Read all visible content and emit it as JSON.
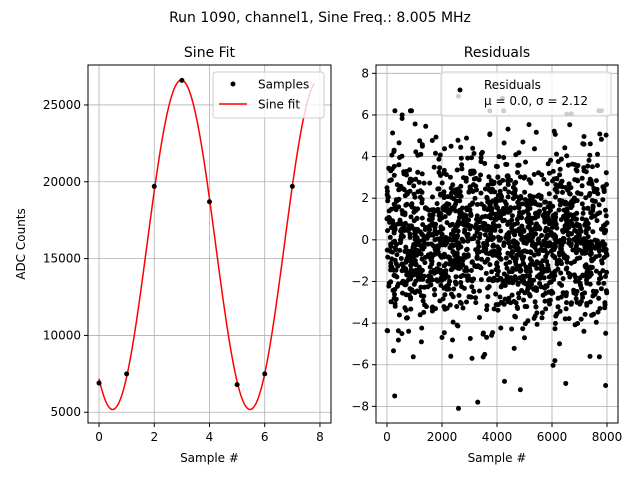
{
  "figure": {
    "suptitle": "Run 1090, channel1, Sine Freq.: 8.005 MHz",
    "colors": {
      "samples": "#000000",
      "fit": "#ff0000",
      "grid": "#b0b0b0"
    }
  },
  "chart_data": [
    {
      "type": "scatter",
      "title": "Sine Fit",
      "xlabel": "Sample #",
      "ylabel": "ADC Counts",
      "xlim": [
        -0.4,
        8.4
      ],
      "ylim": [
        4300,
        27600
      ],
      "xticks": [
        "0",
        "2",
        "4",
        "6",
        "8"
      ],
      "yticks": [
        "5000",
        "10000",
        "15000",
        "20000",
        "25000"
      ],
      "grid": true,
      "legend_position": "top-right",
      "series": [
        {
          "name": "Samples",
          "kind": "points",
          "x": [
            0,
            1,
            2,
            3,
            4,
            5,
            6,
            7
          ],
          "y": [
            6900,
            7500,
            19700,
            26600,
            18700,
            6800,
            7500,
            19700
          ]
        },
        {
          "name": "Sine fit",
          "kind": "line",
          "model": {
            "offset": 15900,
            "amplitude": 10720,
            "period": 4.975,
            "peak_at": 2.98
          },
          "x_range": [
            0,
            7.8
          ]
        }
      ]
    },
    {
      "type": "scatter",
      "title": "Residuals",
      "xlabel": "Sample #",
      "xlim": [
        -400,
        8400
      ],
      "ylim": [
        -8.8,
        8.4
      ],
      "xticks": [
        "0",
        "2000",
        "4000",
        "6000",
        "8000"
      ],
      "yticks": [
        "−8",
        "−6",
        "−4",
        "−2",
        "0",
        "2",
        "4",
        "6",
        "8"
      ],
      "grid": true,
      "legend_position": "top-right",
      "legend_lines": [
        "Residuals",
        "μ = 0.0, σ = 2.12"
      ],
      "series": [
        {
          "name": "Residuals",
          "kind": "points",
          "n_points": 8000,
          "distribution": {
            "mean": 0.0,
            "std": 2.12
          },
          "outliers": [
            {
              "x": 2600,
              "y": 6.9
            },
            {
              "x": 2600,
              "y": -8.1
            },
            {
              "x": 3300,
              "y": -7.8
            },
            {
              "x": 280,
              "y": -7.5
            },
            {
              "x": 4850,
              "y": -7.2
            },
            {
              "x": 550,
              "y": 6.0
            },
            {
              "x": 4200,
              "y": 6.8
            },
            {
              "x": 7800,
              "y": 6.2
            },
            {
              "x": 6500,
              "y": -6.9
            },
            {
              "x": 7950,
              "y": -7.0
            }
          ]
        }
      ]
    }
  ]
}
